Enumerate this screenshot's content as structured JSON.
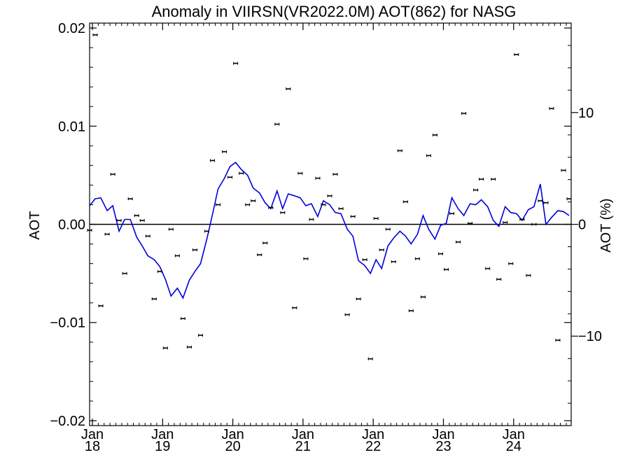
{
  "chart_data": {
    "type": "line",
    "title": "Anomaly in VIIRSN(VR2022.0M) AOT(862) for NASG",
    "ylabel": "AOT",
    "y2label": "AOT (%)",
    "ylim": [
      -0.0205,
      0.0205
    ],
    "y2lim": [
      -18.0,
      18.0
    ],
    "xlim": [
      2017.96,
      2024.82
    ],
    "yticks": [
      {
        "v": 0.02,
        "label": "0.02"
      },
      {
        "v": 0.01,
        "label": "0.01"
      },
      {
        "v": 0.0,
        "label": "0.00"
      },
      {
        "v": -0.01,
        "label": "−0.01"
      },
      {
        "v": -0.02,
        "label": "−0.02"
      }
    ],
    "y2ticks": [
      {
        "v": 10,
        "label": "10"
      },
      {
        "v": 0,
        "label": "0"
      },
      {
        "v": -10,
        "label": "−10"
      }
    ],
    "xticks": [
      {
        "v": 2018.0,
        "month": "Jan",
        "year": "18"
      },
      {
        "v": 2019.0,
        "month": "Jan",
        "year": "19"
      },
      {
        "v": 2020.0,
        "month": "Jan",
        "year": "20"
      },
      {
        "v": 2021.0,
        "month": "Jan",
        "year": "21"
      },
      {
        "v": 2022.0,
        "month": "Jan",
        "year": "22"
      },
      {
        "v": 2023.0,
        "month": "Jan",
        "year": "23"
      },
      {
        "v": 2024.0,
        "month": "Jan",
        "year": "24"
      }
    ],
    "line_color": "#0000dd",
    "point_color": "#000000",
    "series": [
      {
        "kind": "points",
        "x": [
          2017.96,
          2018.04,
          2018.12,
          2018.21,
          2018.29,
          2018.38,
          2018.46,
          2018.54,
          2018.63,
          2018.71,
          2018.79,
          2018.88,
          2018.96,
          2019.04,
          2019.12,
          2019.21,
          2019.29,
          2019.38,
          2019.46,
          2019.54,
          2019.63,
          2019.71,
          2019.79,
          2019.88,
          2019.96,
          2020.04,
          2020.12,
          2020.21,
          2020.29,
          2020.38,
          2020.46,
          2020.54,
          2020.63,
          2020.71,
          2020.79,
          2020.88,
          2020.96,
          2021.04,
          2021.12,
          2021.21,
          2021.29,
          2021.38,
          2021.46,
          2021.54,
          2021.63,
          2021.71,
          2021.79,
          2021.88,
          2021.96,
          2022.04,
          2022.12,
          2022.21,
          2022.29,
          2022.38,
          2022.46,
          2022.54,
          2022.63,
          2022.71,
          2022.79,
          2022.88,
          2022.96,
          2023.04,
          2023.12,
          2023.21,
          2023.29,
          2023.38,
          2023.46,
          2023.54,
          2023.63,
          2023.71,
          2023.79,
          2023.88,
          2023.96,
          2024.04,
          2024.12,
          2024.21,
          2024.29,
          2024.38,
          2024.46,
          2024.54,
          2024.63,
          2024.71,
          2024.79
        ],
        "y": [
          -0.0006,
          0.0193,
          -0.0083,
          -0.001,
          0.0051,
          0.0004,
          -0.005,
          0.0026,
          0.0009,
          0.0004,
          -0.0012,
          -0.0076,
          -0.0048,
          -0.0126,
          -0.0005,
          -0.0032,
          -0.0096,
          -0.0125,
          -0.0026,
          -0.0113,
          -0.0007,
          0.0065,
          0.002,
          0.0074,
          0.0048,
          0.0164,
          0.0052,
          0.002,
          0.0024,
          -0.0031,
          -0.0019,
          0.0017,
          0.0102,
          0.0012,
          0.0138,
          -0.0085,
          0.0052,
          -0.0035,
          0.0005,
          0.0047,
          0.002,
          0.0029,
          0.0051,
          0.0016,
          -0.0092,
          0.0008,
          -0.0076,
          -0.0036,
          -0.0137,
          0.0006,
          -0.0026,
          -0.0005,
          -0.0038,
          0.0075,
          0.0023,
          -0.0088,
          -0.0035,
          -0.0074,
          0.007,
          0.0091,
          -0.003,
          -0.0046,
          0.0011,
          -0.0018,
          0.0113,
          0.0001,
          0.0035,
          0.0046,
          -0.0045,
          0.0046,
          -0.0056,
          0.0002,
          -0.004,
          0.0173,
          0.0005,
          -0.0052,
          0.0,
          0.0024,
          0.0022,
          0.0118,
          -0.0118,
          0.0055,
          0.0026
        ]
      },
      {
        "kind": "line",
        "x": [
          2017.96,
          2018.04,
          2018.12,
          2018.21,
          2018.29,
          2018.38,
          2018.46,
          2018.54,
          2018.63,
          2018.71,
          2018.79,
          2018.88,
          2018.96,
          2019.04,
          2019.12,
          2019.21,
          2019.29,
          2019.38,
          2019.46,
          2019.54,
          2019.63,
          2019.71,
          2019.79,
          2019.88,
          2019.96,
          2020.04,
          2020.12,
          2020.21,
          2020.29,
          2020.38,
          2020.46,
          2020.54,
          2020.63,
          2020.71,
          2020.79,
          2020.88,
          2020.96,
          2021.04,
          2021.12,
          2021.21,
          2021.29,
          2021.38,
          2021.46,
          2021.54,
          2021.63,
          2021.71,
          2021.79,
          2021.88,
          2021.96,
          2022.04,
          2022.12,
          2022.21,
          2022.29,
          2022.38,
          2022.46,
          2022.54,
          2022.63,
          2022.71,
          2022.79,
          2022.88,
          2022.96,
          2023.04,
          2023.12,
          2023.21,
          2023.29,
          2023.38,
          2023.46,
          2023.54,
          2023.63,
          2023.71,
          2023.79,
          2023.88,
          2023.96,
          2024.04,
          2024.12,
          2024.21,
          2024.29,
          2024.38,
          2024.46,
          2024.54,
          2024.63,
          2024.71,
          2024.79
        ],
        "y": [
          0.0019,
          0.0026,
          0.0027,
          0.0014,
          0.0019,
          -0.0007,
          0.0005,
          0.0005,
          -0.0013,
          -0.0022,
          -0.0032,
          -0.0036,
          -0.0043,
          -0.0056,
          -0.0073,
          -0.0065,
          -0.0075,
          -0.0057,
          -0.0048,
          -0.004,
          -0.0015,
          0.001,
          0.0036,
          0.0047,
          0.0059,
          0.0063,
          0.0056,
          0.005,
          0.0037,
          0.0032,
          0.0022,
          0.0016,
          0.0034,
          0.0016,
          0.0031,
          0.0029,
          0.0027,
          0.0019,
          0.0021,
          0.0008,
          0.0024,
          0.002,
          0.0012,
          0.0011,
          -0.0005,
          -0.0012,
          -0.0037,
          -0.0042,
          -0.005,
          -0.0036,
          -0.0045,
          -0.0022,
          -0.0014,
          -0.0007,
          -0.0012,
          -0.002,
          -0.001,
          0.0009,
          -0.0005,
          -0.0015,
          -0.0001,
          0.0001,
          0.0027,
          0.0016,
          0.0009,
          0.0021,
          0.002,
          0.0025,
          0.0018,
          0.0004,
          -0.0002,
          0.0018,
          0.0012,
          0.0011,
          0.0004,
          0.0015,
          0.0018,
          0.0041,
          0.0,
          0.0007,
          0.0014,
          0.0013,
          0.0009
        ]
      }
    ],
    "grid": false,
    "legend": "none"
  }
}
